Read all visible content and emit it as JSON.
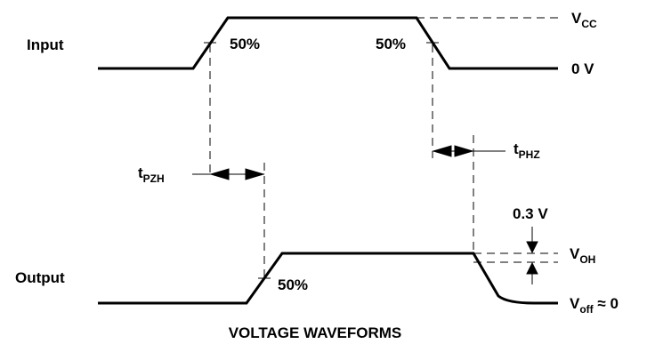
{
  "diagram": {
    "rows": {
      "input_label": "Input",
      "output_label": "Output"
    },
    "levels": {
      "vcc": {
        "main": "V",
        "sub": "CC"
      },
      "zero": "0 V",
      "voh": {
        "main": "V",
        "sub": "OH"
      },
      "voff": {
        "main": "V",
        "sub": "off",
        "suffix": " ≈ 0"
      },
      "offset": "0.3 V"
    },
    "timings": {
      "tpzh": {
        "main": "t",
        "sub": "PZH"
      },
      "tphz": {
        "main": "t",
        "sub": "PHZ"
      }
    },
    "threshold_labels": {
      "input_rise": "50%",
      "input_fall": "50%",
      "output_rise": "50%"
    },
    "caption": "VOLTAGE WAVEFORMS"
  }
}
